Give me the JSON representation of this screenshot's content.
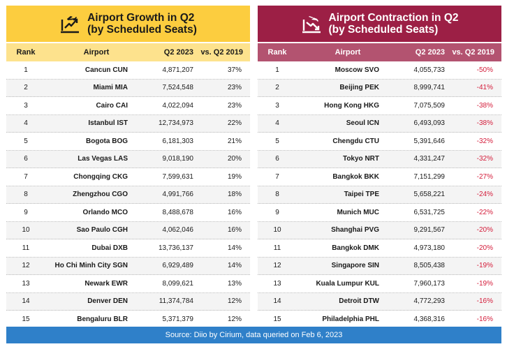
{
  "growth": {
    "title_line1": "Airport Growth in Q2",
    "title_line2": "(by Scheduled Seats)",
    "icon": "plane-takeoff-growth-icon",
    "headers": {
      "rank": "Rank",
      "airport": "Airport",
      "seats": "Q2 2023",
      "change": "vs. Q2 2019"
    },
    "rows": [
      {
        "rank": "1",
        "airport": "Cancun CUN",
        "seats": "4,871,207",
        "change": "37%"
      },
      {
        "rank": "2",
        "airport": "Miami MIA",
        "seats": "7,524,548",
        "change": "23%"
      },
      {
        "rank": "3",
        "airport": "Cairo CAI",
        "seats": "4,022,094",
        "change": "23%"
      },
      {
        "rank": "4",
        "airport": "Istanbul IST",
        "seats": "12,734,973",
        "change": "22%"
      },
      {
        "rank": "5",
        "airport": "Bogota BOG",
        "seats": "6,181,303",
        "change": "21%"
      },
      {
        "rank": "6",
        "airport": "Las Vegas LAS",
        "seats": "9,018,190",
        "change": "20%"
      },
      {
        "rank": "7",
        "airport": "Chongqing CKG",
        "seats": "7,599,631",
        "change": "19%"
      },
      {
        "rank": "8",
        "airport": "Zhengzhou CGO",
        "seats": "4,991,766",
        "change": "18%"
      },
      {
        "rank": "9",
        "airport": "Orlando MCO",
        "seats": "8,488,678",
        "change": "16%"
      },
      {
        "rank": "10",
        "airport": "Sao Paulo CGH",
        "seats": "4,062,046",
        "change": "16%"
      },
      {
        "rank": "11",
        "airport": "Dubai DXB",
        "seats": "13,736,137",
        "change": "14%"
      },
      {
        "rank": "12",
        "airport": "Ho Chi Minh City SGN",
        "seats": "6,929,489",
        "change": "14%"
      },
      {
        "rank": "13",
        "airport": "Newark EWR",
        "seats": "8,099,621",
        "change": "13%"
      },
      {
        "rank": "14",
        "airport": "Denver DEN",
        "seats": "11,374,784",
        "change": "12%"
      },
      {
        "rank": "15",
        "airport": "Bengaluru BLR",
        "seats": "5,371,379",
        "change": "12%"
      }
    ]
  },
  "contraction": {
    "title_line1": "Airport Contraction in Q2",
    "title_line2": "(by Scheduled Seats)",
    "icon": "plane-landing-decline-icon",
    "headers": {
      "rank": "Rank",
      "airport": "Airport",
      "seats": "Q2 2023",
      "change": "vs. Q2 2019"
    },
    "rows": [
      {
        "rank": "1",
        "airport": "Moscow SVO",
        "seats": "4,055,733",
        "change": "-50%"
      },
      {
        "rank": "2",
        "airport": "Beijing PEK",
        "seats": "8,999,741",
        "change": "-41%"
      },
      {
        "rank": "3",
        "airport": "Hong Kong HKG",
        "seats": "7,075,509",
        "change": "-38%"
      },
      {
        "rank": "4",
        "airport": "Seoul ICN",
        "seats": "6,493,093",
        "change": "-38%"
      },
      {
        "rank": "5",
        "airport": "Chengdu CTU",
        "seats": "5,391,646",
        "change": "-32%"
      },
      {
        "rank": "6",
        "airport": "Tokyo NRT",
        "seats": "4,331,247",
        "change": "-32%"
      },
      {
        "rank": "7",
        "airport": "Bangkok BKK",
        "seats": "7,151,299",
        "change": "-27%"
      },
      {
        "rank": "8",
        "airport": "Taipei TPE",
        "seats": "5,658,221",
        "change": "-24%"
      },
      {
        "rank": "9",
        "airport": "Munich MUC",
        "seats": "6,531,725",
        "change": "-22%"
      },
      {
        "rank": "10",
        "airport": "Shanghai PVG",
        "seats": "9,291,567",
        "change": "-20%"
      },
      {
        "rank": "11",
        "airport": "Bangkok DMK",
        "seats": "4,973,180",
        "change": "-20%"
      },
      {
        "rank": "12",
        "airport": "Singapore SIN",
        "seats": "8,505,438",
        "change": "-19%"
      },
      {
        "rank": "13",
        "airport": "Kuala Lumpur KUL",
        "seats": "7,960,173",
        "change": "-19%"
      },
      {
        "rank": "14",
        "airport": "Detroit DTW",
        "seats": "4,772,293",
        "change": "-16%"
      },
      {
        "rank": "15",
        "airport": "Philadelphia PHL",
        "seats": "4,368,316",
        "change": "-16%"
      }
    ]
  },
  "footer": {
    "source": "Source: Diio by Cirium, data queried on Feb 6, 2023"
  },
  "colors": {
    "growth_banner": "#fccd3f",
    "growth_header": "#fde28d",
    "contraction_banner": "#9c1f45",
    "contraction_header": "#b35370",
    "negative_text": "#d41c3a",
    "footer_bg": "#2f80c9"
  }
}
